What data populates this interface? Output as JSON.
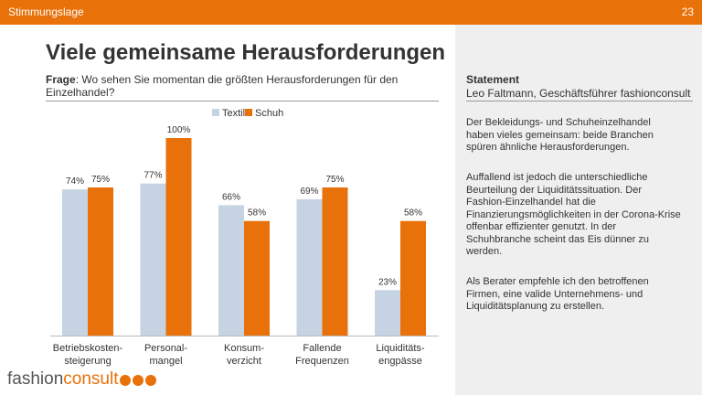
{
  "header": {
    "section": "Stimmungslage",
    "page_number": "23"
  },
  "title": "Viele gemeinsame Herausforderungen",
  "question": {
    "label": "Frage",
    "text": ": Wo sehen Sie momentan die größten Herausforderungen für den Einzelhandel?"
  },
  "statement": {
    "heading": "Statement",
    "author": "Leo Faltmann, Geschäftsführer fashionconsult",
    "paragraphs": [
      "Der Bekleidungs- und Schuheinzelhandel haben vieles gemeinsam: beide Branchen spüren ähnliche Herausforderungen.",
      "Auffallend ist jedoch die unterschiedliche Beurteilung der Liquiditätssituation. Der Fashion-Einzelhandel hat die Finanzierungsmöglichkeiten in der Corona-Krise offenbar effizienter genutzt. In der Schuhbranche scheint das Eis dünner zu werden.",
      "Als Berater empfehle ich den betroffenen Firmen, eine valide Unternehmens- und Liquiditätsplanung zu erstellen."
    ]
  },
  "logo": {
    "part1": "fashion",
    "part2": "consult"
  },
  "colors": {
    "accent": "#E8710A",
    "textil": "#C5D3E3",
    "schuh": "#E8710A",
    "panel": "#EFEFEF"
  },
  "chart_data": {
    "type": "bar",
    "categories": [
      [
        "Betriebskosten-",
        "steigerung"
      ],
      [
        "Personal-",
        "mangel"
      ],
      [
        "Konsum-",
        "verzicht"
      ],
      [
        "Fallende",
        "Frequenzen"
      ],
      [
        "Liquiditäts-",
        "engpässe"
      ]
    ],
    "series": [
      {
        "name": "Textil",
        "values": [
          74,
          77,
          66,
          69,
          23
        ],
        "labels": [
          "74%",
          "77%",
          "66%",
          "69%",
          "23%"
        ],
        "color": "#C5D3E3"
      },
      {
        "name": "Schuh",
        "values": [
          75,
          100,
          58,
          75,
          58
        ],
        "labels": [
          "75%",
          "100%",
          "58%",
          "75%",
          "58%"
        ],
        "color": "#E8710A"
      }
    ],
    "ylim": [
      0,
      100
    ],
    "unit": "%",
    "grid": false,
    "legend": "top-center",
    "title": "",
    "xlabel": "",
    "ylabel": ""
  }
}
